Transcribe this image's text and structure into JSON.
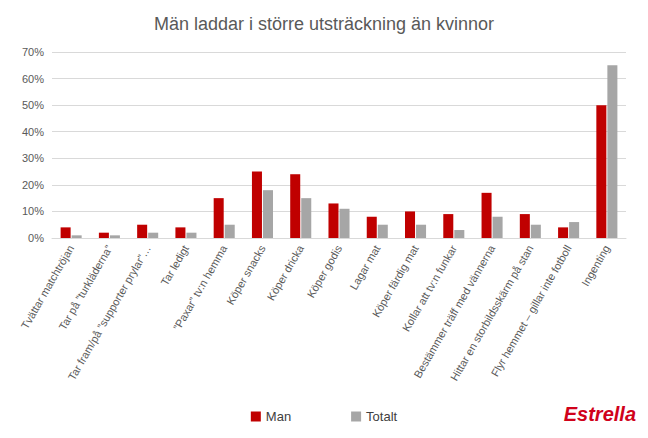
{
  "chart_data": {
    "type": "bar",
    "title": "Män laddar i större utsträckning än kvinnor",
    "categories": [
      "Tvättar matchtröjan",
      "Tar på ”turkläderna”",
      "Tar fram/på ”supporter prylar”…",
      "Tar ledigt",
      "”Paxar” tv:n hemma",
      "Köper snacks",
      "Köper dricka",
      "Köper godis",
      "Lagar mat",
      "Köper färdig mat",
      "Kollar att tv:n funkar",
      "Bestämmer träff med vännerna",
      "Hittar en storbildsskärm på stan",
      "Flyr hemmet – gillar inte fotboll",
      "Ingenting"
    ],
    "series": [
      {
        "name": "Man",
        "color": "#c00000",
        "values": [
          4,
          2,
          5,
          4,
          15,
          25,
          24,
          13,
          8,
          10,
          9,
          17,
          9,
          4,
          50
        ]
      },
      {
        "name": "Totalt",
        "color": "#a6a6a6",
        "values": [
          1,
          1,
          2,
          2,
          5,
          18,
          15,
          11,
          5,
          5,
          3,
          8,
          5,
          6,
          65
        ]
      }
    ],
    "ylim": [
      0,
      70
    ],
    "yticks": [
      {
        "value": 0,
        "label": "0%"
      },
      {
        "value": 10,
        "label": "10%"
      },
      {
        "value": 20,
        "label": "20%"
      },
      {
        "value": 30,
        "label": "30%"
      },
      {
        "value": 40,
        "label": "40%"
      },
      {
        "value": 50,
        "label": "50%"
      },
      {
        "value": 60,
        "label": "60%"
      },
      {
        "value": 70,
        "label": "70%"
      }
    ],
    "grid": true,
    "legend": "bottom",
    "annotations": [
      "Estrella"
    ]
  }
}
